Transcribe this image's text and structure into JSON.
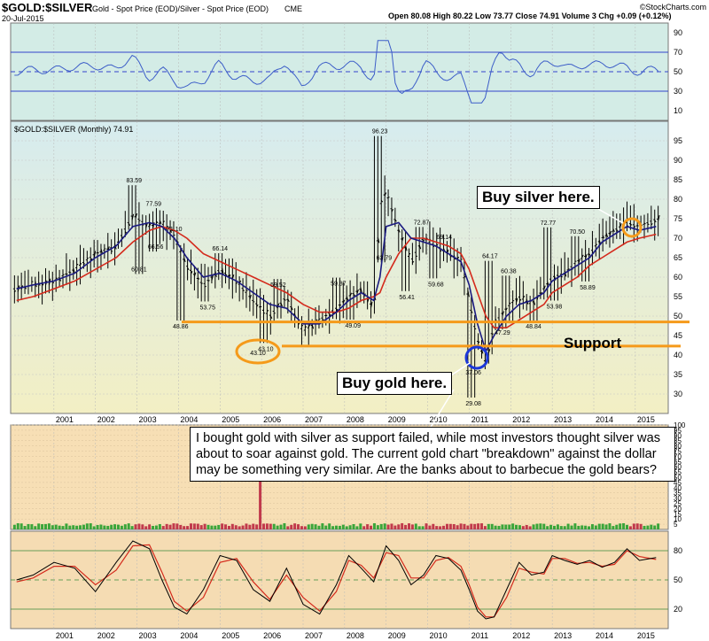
{
  "header": {
    "symbol": "$GOLD:$SILVER",
    "description": "Gold - Spot Price (EOD)/Silver - Spot Price (EOD)",
    "exchange": "CME",
    "date": "20-Jul-2015",
    "quote": "Open 80.08  High 80.22  Low 73.77  Close 74.91  Volume 3  Chg +0.09 (+0.12%)",
    "copyright": "©StockCharts.com"
  },
  "legend": {
    "label": "$GOLD:$SILVER (Monthly) 74.91"
  },
  "annotations": {
    "buy_silver": "Buy silver here.",
    "buy_gold": "Buy gold here.",
    "support": "Support",
    "comment": "I bought gold with silver as support failed, while most investors thought silver was about to soar against gold.  The current gold chart \"breakdown\" against the dollar may be something very similar.  Are the banks about to barbecue the gold bears?"
  },
  "colors": {
    "rsi_bg": "#d3ece6",
    "price_bg_top": "#d6ecef",
    "price_bg_bottom": "#f3efc4",
    "volume_bg": "#f7dfb5",
    "osc_bg": "#f5dcb3",
    "ma_short": "#1a1a80",
    "ma_long": "#d42a1c",
    "rsi_line": "#3d5ec8",
    "rsi_band": "#3344cc",
    "support_line": "#f59a1a",
    "gold_circle": "#1c38d8",
    "silver_circle": "#f59a1a",
    "vol_up": "#3aa53a",
    "vol_down": "#c13a4c"
  },
  "chart_data": {
    "type": "line",
    "x_axis_labels": [
      "2001",
      "2002",
      "2003",
      "2004",
      "2005",
      "2006",
      "2007",
      "2008",
      "2009",
      "2010",
      "2011",
      "2012",
      "2013",
      "2014",
      "2015"
    ],
    "rsi_panel": {
      "y_ticks": [
        10,
        30,
        50,
        70,
        90
      ],
      "bands": [
        30,
        50,
        70
      ]
    },
    "price_panel": {
      "ylim": [
        25,
        100
      ],
      "y_ticks": [
        30,
        35,
        40,
        45,
        50,
        55,
        60,
        65,
        70,
        75,
        80,
        85,
        90,
        95
      ],
      "annotated_values": [
        {
          "label": "83.59",
          "x": 2002.93,
          "y": 83.59
        },
        {
          "label": "77.59",
          "x": 2003.4,
          "y": 77.59
        },
        {
          "label": "71.10",
          "x": 2003.9,
          "y": 71.1
        },
        {
          "label": "60.81",
          "x": 2003.05,
          "y": 60.81
        },
        {
          "label": "66.56",
          "x": 2003.45,
          "y": 66.56
        },
        {
          "label": "66.14",
          "x": 2005.0,
          "y": 66.14
        },
        {
          "label": "53.75",
          "x": 2004.7,
          "y": 53.75
        },
        {
          "label": "48.86",
          "x": 2004.05,
          "y": 48.86
        },
        {
          "label": "59.52",
          "x": 2006.4,
          "y": 59.52
        },
        {
          "label": "43.10",
          "x": 2006.1,
          "y": 43.1
        },
        {
          "label": "59.87",
          "x": 2007.85,
          "y": 59.87
        },
        {
          "label": "49.09",
          "x": 2008.2,
          "y": 49.09
        },
        {
          "label": "96.23",
          "x": 2008.85,
          "y": 96.23
        },
        {
          "label": "63.79",
          "x": 2008.95,
          "y": 63.79
        },
        {
          "label": "72.87",
          "x": 2009.85,
          "y": 72.87
        },
        {
          "label": "56.41",
          "x": 2009.5,
          "y": 56.41
        },
        {
          "label": "69.14",
          "x": 2010.4,
          "y": 69.14
        },
        {
          "label": "59.68",
          "x": 2010.2,
          "y": 59.68
        },
        {
          "label": "64.17",
          "x": 2011.5,
          "y": 64.17
        },
        {
          "label": "60.38",
          "x": 2011.95,
          "y": 60.38
        },
        {
          "label": "47.29",
          "x": 2011.8,
          "y": 47.29
        },
        {
          "label": "48.84",
          "x": 2012.55,
          "y": 48.84
        },
        {
          "label": "37.06",
          "x": 2011.1,
          "y": 37.06
        },
        {
          "label": "29.08",
          "x": 2011.1,
          "y": 29.08
        },
        {
          "label": "72.77",
          "x": 2012.9,
          "y": 72.77
        },
        {
          "label": "53.98",
          "x": 2013.05,
          "y": 53.98
        },
        {
          "label": "70.50",
          "x": 2013.6,
          "y": 70.5
        },
        {
          "label": "58.89",
          "x": 2013.85,
          "y": 58.89
        }
      ],
      "support_lines": [
        48.5,
        42.3
      ],
      "series": [
        {
          "key": "price",
          "x": [
            2000.1,
            2000.5,
            2001.0,
            2001.5,
            2002.0,
            2002.5,
            2002.9,
            2003.3,
            2003.6,
            2003.9,
            2004.2,
            2004.6,
            2005.0,
            2005.4,
            2005.8,
            2006.2,
            2006.6,
            2007.0,
            2007.4,
            2007.8,
            2008.1,
            2008.4,
            2008.7,
            2008.85,
            2009.0,
            2009.3,
            2009.6,
            2009.9,
            2010.2,
            2010.5,
            2010.8,
            2011.0,
            2011.2,
            2011.4,
            2011.6,
            2011.9,
            2012.2,
            2012.5,
            2012.8,
            2013.0,
            2013.3,
            2013.6,
            2013.9,
            2014.2,
            2014.5,
            2014.8,
            2015.1,
            2015.5
          ],
          "y": [
            57,
            58,
            59,
            62,
            66,
            68,
            76,
            73,
            74,
            70,
            63,
            58,
            62,
            59,
            54,
            50,
            55,
            46,
            49,
            52,
            55,
            57,
            52,
            78,
            82,
            72,
            64,
            70,
            68,
            66,
            64,
            54,
            44,
            38,
            48,
            52,
            55,
            53,
            57,
            60,
            61,
            64,
            66,
            70,
            72,
            74,
            73,
            74.9
          ]
        },
        {
          "key": "ma_short",
          "x": [
            2000.1,
            2000.5,
            2001.0,
            2001.5,
            2002.0,
            2002.5,
            2002.9,
            2003.3,
            2003.6,
            2003.9,
            2004.2,
            2004.6,
            2005.0,
            2005.4,
            2005.8,
            2006.2,
            2006.6,
            2007.0,
            2007.4,
            2007.8,
            2008.1,
            2008.4,
            2008.7,
            2008.85,
            2009.0,
            2009.3,
            2009.6,
            2009.9,
            2010.2,
            2010.5,
            2010.8,
            2011.0,
            2011.2,
            2011.4,
            2011.6,
            2011.9,
            2012.2,
            2012.5,
            2012.8,
            2013.0,
            2013.3,
            2013.6,
            2013.9,
            2014.2,
            2014.5,
            2014.8,
            2015.1,
            2015.5
          ],
          "y": [
            57,
            58,
            59,
            61,
            65,
            68,
            73,
            74,
            73,
            70,
            65,
            60,
            61,
            59,
            56,
            53,
            52,
            48,
            48,
            51,
            54,
            56,
            54,
            60,
            73,
            74,
            70,
            69,
            68,
            66,
            64,
            58,
            48,
            41,
            45,
            50,
            53,
            54,
            56,
            59,
            61,
            63,
            65,
            69,
            71,
            73,
            72,
            73
          ]
        },
        {
          "key": "ma_long",
          "x": [
            2000.1,
            2000.5,
            2001.0,
            2001.5,
            2002.0,
            2002.5,
            2002.9,
            2003.3,
            2003.6,
            2003.9,
            2004.2,
            2004.6,
            2005.0,
            2005.4,
            2005.8,
            2006.2,
            2006.6,
            2007.0,
            2007.4,
            2007.8,
            2008.1,
            2008.4,
            2008.7,
            2008.85,
            2009.0,
            2009.3,
            2009.6,
            2009.9,
            2010.2,
            2010.5,
            2010.8,
            2011.0,
            2011.2,
            2011.4,
            2011.6,
            2011.9,
            2012.2,
            2012.5,
            2012.8,
            2013.0,
            2013.3,
            2013.6,
            2013.9,
            2014.2,
            2014.5,
            2014.8,
            2015.1,
            2015.5
          ],
          "y": [
            54,
            55,
            57,
            59,
            62,
            65,
            69,
            72,
            73,
            72,
            70,
            66,
            64,
            62,
            60,
            58,
            56,
            53,
            51,
            51,
            52,
            54,
            55,
            56,
            60,
            66,
            70,
            70,
            69,
            68,
            66,
            62,
            56,
            50,
            47,
            47,
            49,
            51,
            53,
            56,
            58,
            60,
            63,
            65,
            67,
            69,
            70,
            71
          ]
        }
      ]
    },
    "volume_panel": {
      "y_ticks": [
        5,
        10,
        15,
        20,
        25,
        30,
        35,
        40,
        45,
        50,
        55,
        60,
        65,
        70,
        75,
        80,
        85,
        90,
        95,
        100
      ],
      "spike_year": 2006.0
    },
    "oscillator_panel": {
      "y_ticks": [
        20,
        50,
        80
      ],
      "series": [
        {
          "key": "fast",
          "x": [
            2000.1,
            2000.5,
            2001.0,
            2001.5,
            2002.0,
            2002.5,
            2002.9,
            2003.3,
            2003.6,
            2003.9,
            2004.2,
            2004.6,
            2005.0,
            2005.4,
            2005.8,
            2006.2,
            2006.6,
            2007.0,
            2007.4,
            2007.8,
            2008.1,
            2008.4,
            2008.7,
            2009.0,
            2009.3,
            2009.6,
            2009.9,
            2010.2,
            2010.5,
            2010.8,
            2011.0,
            2011.2,
            2011.4,
            2011.6,
            2011.9,
            2012.2,
            2012.5,
            2012.8,
            2013.0,
            2013.3,
            2013.6,
            2013.9,
            2014.2,
            2014.5,
            2014.8,
            2015.1,
            2015.5
          ],
          "y": [
            50,
            55,
            68,
            62,
            38,
            68,
            90,
            82,
            50,
            22,
            15,
            40,
            75,
            70,
            40,
            28,
            62,
            25,
            15,
            45,
            75,
            62,
            48,
            85,
            70,
            45,
            55,
            75,
            72,
            60,
            40,
            18,
            10,
            12,
            40,
            68,
            55,
            58,
            75,
            70,
            66,
            70,
            63,
            68,
            82,
            70,
            73
          ]
        },
        {
          "key": "slow",
          "x": [
            2000.1,
            2000.5,
            2001.0,
            2001.5,
            2002.0,
            2002.5,
            2002.9,
            2003.3,
            2003.6,
            2003.9,
            2004.2,
            2004.6,
            2005.0,
            2005.4,
            2005.8,
            2006.2,
            2006.6,
            2007.0,
            2007.4,
            2007.8,
            2008.1,
            2008.4,
            2008.7,
            2009.0,
            2009.3,
            2009.6,
            2009.9,
            2010.2,
            2010.5,
            2010.8,
            2011.0,
            2011.2,
            2011.4,
            2011.6,
            2011.9,
            2012.2,
            2012.5,
            2012.8,
            2013.0,
            2013.3,
            2013.6,
            2013.9,
            2014.2,
            2014.5,
            2014.8,
            2015.1,
            2015.5
          ],
          "y": [
            48,
            52,
            64,
            64,
            45,
            60,
            85,
            86,
            58,
            28,
            18,
            32,
            68,
            72,
            48,
            30,
            55,
            32,
            18,
            38,
            70,
            65,
            52,
            78,
            75,
            52,
            52,
            70,
            73,
            64,
            45,
            22,
            12,
            12,
            32,
            62,
            58,
            56,
            72,
            72,
            67,
            68,
            64,
            66,
            80,
            74,
            71
          ]
        }
      ]
    }
  }
}
